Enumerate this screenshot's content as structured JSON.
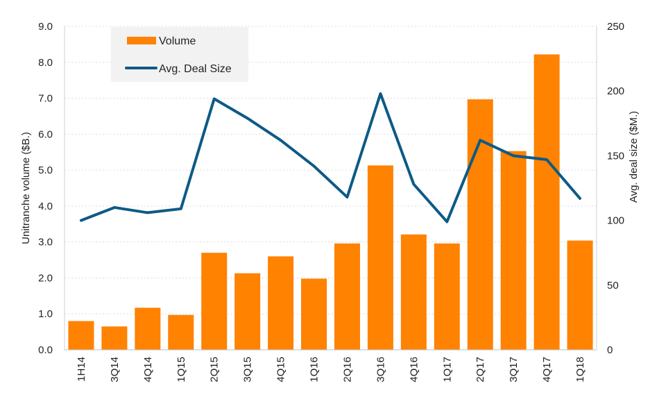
{
  "chart_data": {
    "type": "bar",
    "categories": [
      "1H14",
      "3Q14",
      "4Q14",
      "1Q15",
      "2Q15",
      "3Q15",
      "4Q15",
      "1Q16",
      "2Q16",
      "3Q16",
      "4Q16",
      "1Q17",
      "2Q17",
      "3Q17",
      "4Q17",
      "1Q18"
    ],
    "series": [
      {
        "name": "Volume",
        "type": "bar",
        "axis": "left",
        "color": "#ff8200",
        "values": [
          0.8,
          0.65,
          1.17,
          0.97,
          2.7,
          2.13,
          2.6,
          1.98,
          2.96,
          5.13,
          3.21,
          2.96,
          6.97,
          5.53,
          8.22,
          3.04
        ]
      },
      {
        "name": "Avg. Deal Size",
        "type": "line",
        "axis": "right",
        "color": "#0d5a86",
        "values": [
          100,
          110,
          106,
          109,
          194,
          179,
          162,
          142,
          118,
          198,
          128,
          99,
          162,
          150,
          147,
          117
        ]
      }
    ],
    "ylabel": "Unitranche volume ($B.)",
    "y2label": "Avg. deal size ($M.)",
    "xlabel": "",
    "ylim": [
      0,
      9
    ],
    "y2lim": [
      0,
      250
    ],
    "yticks": [
      "0.0",
      "1.0",
      "2.0",
      "3.0",
      "4.0",
      "5.0",
      "6.0",
      "7.0",
      "8.0",
      "9.0"
    ],
    "y2ticks": [
      "0",
      "50",
      "100",
      "150",
      "200",
      "250"
    ],
    "grid": true,
    "legend": "top-left",
    "legend_background": "#f2f2f2"
  }
}
